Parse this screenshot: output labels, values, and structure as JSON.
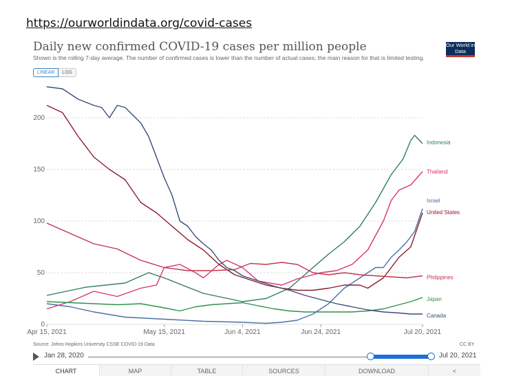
{
  "url": "https://ourworldindata.org/covid-cases",
  "logo_text": "Our World in Data",
  "toggle": {
    "linear": "LINEAR",
    "log": "LOG"
  },
  "source": "Source: Johns Hopkins University CSSE COVID-19 Data",
  "license": "CC BY",
  "timeline": {
    "start": "Jan 28, 2020",
    "end": "Jul 20, 2021"
  },
  "tabs": [
    "CHART",
    "MAP",
    "TABLE",
    "SOURCES",
    "DOWNLOAD",
    "<"
  ],
  "colors": {
    "Indonesia": "#2e7d5b",
    "Thailand": "#d6336c",
    "Israel": "#4a6fa5",
    "United States": "#8b1a2b",
    "Philippines": "#c2334d",
    "Japan": "#2f8f4e",
    "Canada": "#3a4a7a"
  },
  "chart_data": {
    "type": "line",
    "title": "Daily new confirmed COVID-19 cases per million people",
    "subtitle": "Shown is the rolling 7-day average. The number of confirmed cases is lower than the number of actual cases; the main reason for that is limited testing.",
    "xlabel": "",
    "ylabel": "",
    "x_range": [
      0,
      96
    ],
    "ylim": [
      0,
      240
    ],
    "y_ticks": [
      0,
      50,
      100,
      150,
      200
    ],
    "x_ticks": [
      {
        "day": 0,
        "label": "Apr 15, 2021"
      },
      {
        "day": 30,
        "label": "May 15, 2021"
      },
      {
        "day": 50,
        "label": "Jun 4, 2021"
      },
      {
        "day": 70,
        "label": "Jun 24, 2021"
      },
      {
        "day": 96,
        "label": "Jul 20, 2021"
      }
    ],
    "series": [
      {
        "name": "Indonesia",
        "points": [
          [
            0,
            28
          ],
          [
            10,
            36
          ],
          [
            20,
            40
          ],
          [
            26,
            50
          ],
          [
            30,
            45
          ],
          [
            40,
            30
          ],
          [
            50,
            22
          ],
          [
            56,
            25
          ],
          [
            62,
            35
          ],
          [
            68,
            55
          ],
          [
            72,
            68
          ],
          [
            76,
            80
          ],
          [
            80,
            95
          ],
          [
            84,
            118
          ],
          [
            88,
            145
          ],
          [
            91,
            160
          ],
          [
            93,
            178
          ],
          [
            94,
            183
          ],
          [
            96,
            175
          ]
        ]
      },
      {
        "name": "Thailand",
        "points": [
          [
            0,
            15
          ],
          [
            6,
            22
          ],
          [
            12,
            32
          ],
          [
            18,
            27
          ],
          [
            24,
            35
          ],
          [
            28,
            38
          ],
          [
            30,
            55
          ],
          [
            34,
            58
          ],
          [
            38,
            50
          ],
          [
            40,
            45
          ],
          [
            44,
            58
          ],
          [
            46,
            62
          ],
          [
            50,
            55
          ],
          [
            54,
            42
          ],
          [
            60,
            38
          ],
          [
            64,
            44
          ],
          [
            70,
            50
          ],
          [
            74,
            52
          ],
          [
            78,
            58
          ],
          [
            82,
            72
          ],
          [
            86,
            100
          ],
          [
            88,
            120
          ],
          [
            90,
            130
          ],
          [
            93,
            135
          ],
          [
            96,
            148
          ]
        ]
      },
      {
        "name": "Israel",
        "points": [
          [
            0,
            20
          ],
          [
            6,
            17
          ],
          [
            12,
            12
          ],
          [
            20,
            7
          ],
          [
            30,
            5
          ],
          [
            40,
            3
          ],
          [
            50,
            2
          ],
          [
            56,
            1
          ],
          [
            60,
            2
          ],
          [
            64,
            4
          ],
          [
            68,
            10
          ],
          [
            72,
            20
          ],
          [
            76,
            35
          ],
          [
            80,
            45
          ],
          [
            82,
            50
          ],
          [
            84,
            55
          ],
          [
            86,
            55
          ],
          [
            88,
            65
          ],
          [
            90,
            72
          ],
          [
            92,
            80
          ],
          [
            94,
            90
          ],
          [
            96,
            112
          ]
        ]
      },
      {
        "name": "United States",
        "points": [
          [
            0,
            212
          ],
          [
            4,
            205
          ],
          [
            8,
            182
          ],
          [
            12,
            162
          ],
          [
            16,
            150
          ],
          [
            20,
            140
          ],
          [
            24,
            118
          ],
          [
            28,
            108
          ],
          [
            32,
            95
          ],
          [
            36,
            82
          ],
          [
            40,
            72
          ],
          [
            44,
            58
          ],
          [
            48,
            48
          ],
          [
            52,
            43
          ],
          [
            56,
            38
          ],
          [
            60,
            35
          ],
          [
            64,
            33
          ],
          [
            68,
            33
          ],
          [
            72,
            35
          ],
          [
            76,
            38
          ],
          [
            80,
            38
          ],
          [
            82,
            35
          ],
          [
            86,
            45
          ],
          [
            90,
            65
          ],
          [
            93,
            75
          ],
          [
            96,
            108
          ]
        ]
      },
      {
        "name": "Philippines",
        "points": [
          [
            0,
            98
          ],
          [
            6,
            88
          ],
          [
            12,
            78
          ],
          [
            18,
            73
          ],
          [
            24,
            62
          ],
          [
            30,
            55
          ],
          [
            36,
            52
          ],
          [
            42,
            52
          ],
          [
            48,
            53
          ],
          [
            52,
            59
          ],
          [
            56,
            58
          ],
          [
            60,
            60
          ],
          [
            64,
            58
          ],
          [
            68,
            50
          ],
          [
            72,
            48
          ],
          [
            76,
            50
          ],
          [
            80,
            48
          ],
          [
            84,
            47
          ],
          [
            88,
            46
          ],
          [
            92,
            45
          ],
          [
            96,
            47
          ]
        ]
      },
      {
        "name": "Japan",
        "points": [
          [
            0,
            22
          ],
          [
            6,
            21
          ],
          [
            12,
            20
          ],
          [
            18,
            19
          ],
          [
            24,
            20
          ],
          [
            30,
            16
          ],
          [
            34,
            13
          ],
          [
            38,
            17
          ],
          [
            42,
            19
          ],
          [
            46,
            20
          ],
          [
            50,
            21
          ],
          [
            54,
            18
          ],
          [
            58,
            15
          ],
          [
            62,
            13
          ],
          [
            66,
            12
          ],
          [
            70,
            12
          ],
          [
            74,
            12
          ],
          [
            78,
            12
          ],
          [
            82,
            13
          ],
          [
            86,
            15
          ],
          [
            90,
            19
          ],
          [
            93,
            22
          ],
          [
            96,
            26
          ]
        ]
      },
      {
        "name": "Canada",
        "points": [
          [
            0,
            230
          ],
          [
            4,
            228
          ],
          [
            8,
            218
          ],
          [
            12,
            212
          ],
          [
            14,
            210
          ],
          [
            16,
            200
          ],
          [
            18,
            212
          ],
          [
            20,
            210
          ],
          [
            24,
            195
          ],
          [
            26,
            182
          ],
          [
            28,
            162
          ],
          [
            30,
            142
          ],
          [
            32,
            125
          ],
          [
            34,
            100
          ],
          [
            36,
            95
          ],
          [
            38,
            85
          ],
          [
            40,
            78
          ],
          [
            42,
            72
          ],
          [
            44,
            62
          ],
          [
            46,
            55
          ],
          [
            48,
            52
          ],
          [
            50,
            47
          ],
          [
            54,
            42
          ],
          [
            58,
            37
          ],
          [
            62,
            33
          ],
          [
            66,
            28
          ],
          [
            70,
            24
          ],
          [
            74,
            20
          ],
          [
            78,
            17
          ],
          [
            82,
            14
          ],
          [
            86,
            12
          ],
          [
            90,
            11
          ],
          [
            93,
            10
          ],
          [
            96,
            10
          ]
        ]
      }
    ]
  }
}
